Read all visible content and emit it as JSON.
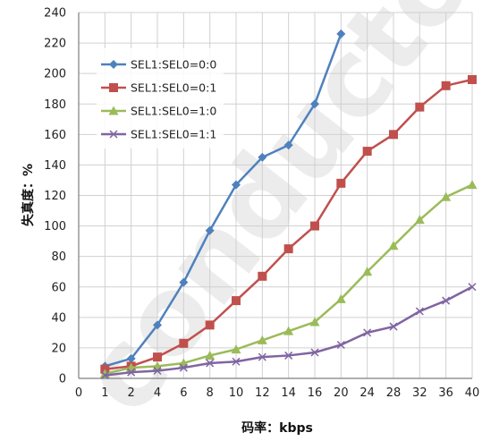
{
  "chart_data": {
    "type": "line",
    "title": "",
    "xlabel": "码率：kbps",
    "ylabel": "失真度：%",
    "x_tick_labels": [
      "0",
      "1",
      "2",
      "4",
      "6",
      "8",
      "10",
      "12",
      "14",
      "16",
      "20",
      "24",
      "28",
      "32",
      "36",
      "40"
    ],
    "y_ticks": [
      0,
      20,
      40,
      60,
      80,
      100,
      120,
      140,
      160,
      180,
      200,
      220,
      240
    ],
    "ylim": [
      0,
      240
    ],
    "grid": true,
    "legend_position": "top-left",
    "watermark_text": "conductor",
    "series": [
      {
        "name": "SEL1:SEL0=0:0",
        "color": "#4f81bd",
        "marker": "diamond",
        "x": [
          "1",
          "2",
          "4",
          "6",
          "8",
          "10",
          "12",
          "14",
          "16",
          "20"
        ],
        "values": [
          8,
          13,
          35,
          63,
          97,
          127,
          145,
          153,
          180,
          226
        ]
      },
      {
        "name": "SEL1:SEL0=0:1",
        "color": "#c0504d",
        "marker": "square",
        "x": [
          "1",
          "2",
          "4",
          "6",
          "8",
          "10",
          "12",
          "14",
          "16",
          "20",
          "24",
          "28",
          "32",
          "36",
          "40"
        ],
        "values": [
          6,
          8,
          14,
          23,
          35,
          51,
          67,
          85,
          100,
          128,
          149,
          160,
          178,
          192,
          196
        ]
      },
      {
        "name": "SEL1:SEL0=1:0",
        "color": "#9bbb59",
        "marker": "triangle",
        "x": [
          "1",
          "2",
          "4",
          "6",
          "8",
          "10",
          "12",
          "14",
          "16",
          "20",
          "24",
          "28",
          "32",
          "36",
          "40"
        ],
        "values": [
          3,
          7,
          8,
          10,
          15,
          19,
          25,
          31,
          37,
          52,
          70,
          87,
          104,
          119,
          127
        ]
      },
      {
        "name": "SEL1:SEL0=1:1",
        "color": "#8064a2",
        "marker": "x",
        "x": [
          "1",
          "2",
          "4",
          "6",
          "8",
          "10",
          "12",
          "14",
          "16",
          "20",
          "24",
          "28",
          "32",
          "36",
          "40"
        ],
        "values": [
          2,
          4,
          5,
          7,
          10,
          11,
          14,
          15,
          17,
          22,
          30,
          34,
          44,
          51,
          60
        ]
      }
    ]
  }
}
